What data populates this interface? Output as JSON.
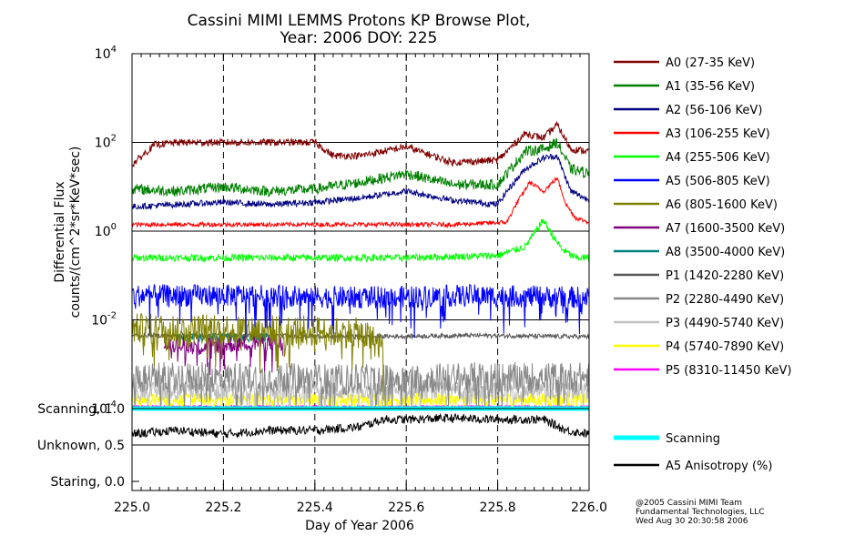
{
  "chart_data": {
    "type": "line",
    "title": "Cassini MIMI LEMMS Protons KP Browse Plot,",
    "subtitle": "Year: 2006 DOY: 225",
    "ylabel_line1": "Differential Flux",
    "ylabel_line2": "counts/(cm^2*sr*KeV*sec)",
    "xlabel": "Day of Year 2006",
    "xlim": [
      225.0,
      226.0
    ],
    "ylim_log10": [
      -4,
      4
    ],
    "x_ticks": [
      "225.0",
      "225.2",
      "225.4",
      "225.6",
      "225.8",
      "226.0"
    ],
    "x_tick_values": [
      225.0,
      225.2,
      225.4,
      225.6,
      225.8,
      226.0
    ],
    "y_ticks": [
      {
        "base": "10",
        "exp": "4",
        "log": 4
      },
      {
        "base": "10",
        "exp": "2",
        "log": 2
      },
      {
        "base": "10",
        "exp": "0",
        "log": 0
      },
      {
        "base": "10",
        "exp": "-2",
        "log": -2
      },
      {
        "base": "10",
        "exp": "-4",
        "log": -4
      }
    ],
    "grid": {
      "vertical_dashed": true,
      "horizontal_decades": true
    },
    "series": [
      {
        "name": "A0 (27-35 KeV)",
        "color": "#800000",
        "x": [
          225.0,
          225.05,
          225.1,
          225.2,
          225.3,
          225.4,
          225.44,
          225.5,
          225.6,
          225.7,
          225.8,
          225.82,
          225.86,
          225.9,
          225.93,
          225.96,
          226.0
        ],
        "log10": [
          1.5,
          1.95,
          2.0,
          2.0,
          2.0,
          2.0,
          1.7,
          1.7,
          1.9,
          1.55,
          1.6,
          1.8,
          2.2,
          2.1,
          2.4,
          1.85,
          1.8
        ],
        "noise": 0.08
      },
      {
        "name": "A1 (35-56 KeV)",
        "color": "#008000",
        "x": [
          225.0,
          225.1,
          225.2,
          225.3,
          225.4,
          225.5,
          225.6,
          225.7,
          225.8,
          225.82,
          225.86,
          225.9,
          225.93,
          225.96,
          226.0
        ],
        "log10": [
          0.95,
          0.9,
          1.0,
          0.9,
          0.95,
          1.1,
          1.3,
          1.05,
          1.05,
          1.3,
          1.8,
          1.85,
          2.0,
          1.4,
          1.3
        ],
        "noise": 0.12
      },
      {
        "name": "A2 (56-106 KeV)",
        "color": "#000080",
        "x": [
          225.0,
          225.1,
          225.2,
          225.3,
          225.4,
          225.5,
          225.6,
          225.7,
          225.8,
          225.82,
          225.86,
          225.9,
          225.93,
          225.96,
          226.0
        ],
        "log10": [
          0.55,
          0.6,
          0.65,
          0.6,
          0.65,
          0.75,
          0.9,
          0.7,
          0.6,
          0.9,
          1.4,
          1.65,
          1.7,
          0.9,
          0.7
        ],
        "noise": 0.07
      },
      {
        "name": "A3 (106-255 KeV)",
        "color": "#ff0000",
        "x": [
          225.0,
          225.1,
          225.3,
          225.5,
          225.7,
          225.82,
          225.84,
          225.87,
          225.9,
          225.93,
          225.95,
          225.97,
          226.0
        ],
        "log10": [
          0.15,
          0.15,
          0.15,
          0.15,
          0.15,
          0.2,
          0.6,
          1.1,
          0.9,
          1.2,
          0.6,
          0.3,
          0.2
        ],
        "noise": 0.05
      },
      {
        "name": "A4 (255-506 KeV)",
        "color": "#00ff00",
        "x": [
          225.0,
          225.2,
          225.4,
          225.6,
          225.8,
          225.86,
          225.9,
          225.92,
          225.94,
          225.97,
          226.0
        ],
        "log10": [
          -0.6,
          -0.6,
          -0.6,
          -0.6,
          -0.55,
          -0.35,
          0.25,
          -0.1,
          -0.4,
          -0.6,
          -0.6
        ],
        "noise": 0.08
      },
      {
        "name": "A5 (506-805 KeV)",
        "color": "#0000ff",
        "x": [
          225.0,
          225.25,
          225.5,
          225.75,
          226.0
        ],
        "log10": [
          -1.45,
          -1.45,
          -1.5,
          -1.45,
          -1.5
        ],
        "noise": 0.25
      },
      {
        "name": "A6 (805-1600 KeV)",
        "color": "#808000",
        "x": [
          225.0,
          225.2,
          225.4,
          225.5,
          225.55
        ],
        "log10": [
          -2.2,
          -2.2,
          -2.25,
          -2.3,
          -2.6
        ],
        "noise": 0.35
      },
      {
        "name": "A7 (1600-3500 KeV)",
        "color": "#800080",
        "x": [
          225.07,
          225.15,
          225.28,
          225.33
        ],
        "log10": [
          -2.5,
          -2.6,
          -2.5,
          -2.55
        ],
        "noise": 0.2
      },
      {
        "name": "A8 (3500-4000 KeV)",
        "color": "#008080",
        "x": [
          225.1,
          225.3
        ],
        "log10": [
          -2.4,
          -2.4
        ],
        "noise": 0.1
      },
      {
        "name": "P1 (1420-2280 KeV)",
        "color": "#555555",
        "x": [
          225.0,
          225.25,
          225.5,
          225.75,
          226.0
        ],
        "log10": [
          -2.35,
          -2.35,
          -2.38,
          -2.35,
          -2.38
        ],
        "noise": 0.05
      },
      {
        "name": "P2 (2280-4490 KeV)",
        "color": "#888888",
        "x": [
          225.0,
          225.25,
          225.5,
          225.75,
          226.0
        ],
        "log10": [
          -3.3,
          -3.3,
          -3.35,
          -3.3,
          -3.3
        ],
        "noise": 0.35
      },
      {
        "name": "P3 (4490-5740 KeV)",
        "color": "#c0c0c0",
        "x": [
          225.0,
          225.5,
          226.0
        ],
        "log10": [
          -3.6,
          -3.6,
          -3.6
        ],
        "noise": 0.2
      },
      {
        "name": "P4 (5740-7890 KeV)",
        "color": "#ffff00",
        "x": [
          225.0,
          225.5,
          226.0
        ],
        "log10": [
          -3.8,
          -3.8,
          -3.8
        ],
        "noise": 0.15
      },
      {
        "name": "P5 (8310-11450 KeV)",
        "color": "#ff00ff",
        "x": [
          225.0,
          226.0
        ],
        "log10": [
          -3.95,
          -3.95
        ],
        "noise": 0.02
      }
    ],
    "lower_panel": {
      "ytick_labels": [
        "Scanning, 1.0",
        "Unknown, 0.5",
        "Staring, 0.0"
      ],
      "ytick_values": [
        1.0,
        0.5,
        0.0
      ],
      "series": [
        {
          "name": "Scanning",
          "color": "#00ffff",
          "constant": 1.0
        },
        {
          "name": "A5 Anisotropy (%)",
          "color": "#000000",
          "x": [
            225.0,
            225.1,
            225.2,
            225.3,
            225.4,
            225.5,
            225.55,
            225.6,
            225.7,
            225.8,
            225.9,
            225.95,
            226.0
          ],
          "values": [
            0.65,
            0.7,
            0.65,
            0.7,
            0.7,
            0.75,
            0.85,
            0.85,
            0.87,
            0.85,
            0.85,
            0.7,
            0.65
          ],
          "noise": 0.06
        }
      ]
    }
  },
  "credits": {
    "line1": "@2005 Cassini MIMI Team",
    "line2": "Fundamental Technologies, LLC",
    "line3": "Wed Aug 30 20:30:58 2006"
  }
}
